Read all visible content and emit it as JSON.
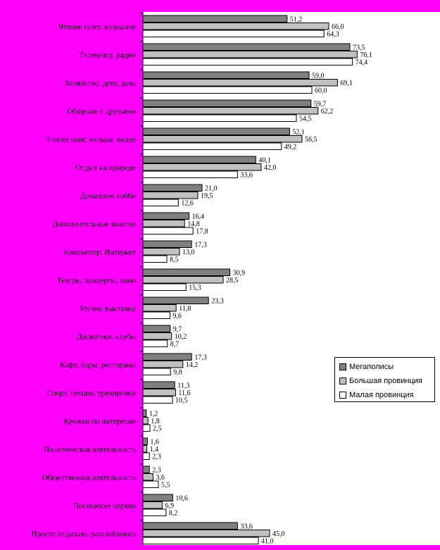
{
  "chart_data": {
    "type": "bar",
    "orientation": "horizontal",
    "title": "",
    "xlabel": "",
    "ylabel": "",
    "xlim": [
      0,
      100
    ],
    "grid": false,
    "legend_position": "right",
    "background_color": "#ff00ff",
    "plot_background_color": "#ffffff",
    "categories": [
      "Чтение газет, журналов",
      "Телевизор, радио",
      "Хозяйство, дети, дача",
      "Общение с друзьями",
      "Чтение книг, музыка, видео",
      "Отдых на природе",
      "Домашнее хобби",
      "Дополнительные занятия",
      "Компьютер, Интернет",
      "Театры, концерты, кино",
      "Музеи, выставки",
      "Дискотеки, клубы",
      "Кафе, бары, рестораны",
      "Спорт, секции, тренировки",
      "Кружки по интересам",
      "Политическая деятельность",
      "Общественная деятельность",
      "Посещение церкви",
      "Просто отдыхаю, расслабляюсь"
    ],
    "series": [
      {
        "name": "Мегаполисы",
        "color": "#808080",
        "values": [
          51.2,
          73.5,
          59.0,
          59.7,
          52.1,
          40.1,
          21.0,
          16.4,
          17.3,
          30.9,
          23.3,
          9.7,
          17.3,
          11.3,
          1.2,
          1.6,
          2.3,
          10.6,
          33.6
        ],
        "labels": [
          "51,2",
          "73,5",
          "59,0",
          "59,7",
          "52,1",
          "40,1",
          "21,0",
          "16,4",
          "17,3",
          "30,9",
          "23,3",
          "9,7",
          "17,3",
          "11,3",
          "1,2",
          "1,6",
          "2,3",
          "10,6",
          "33,6"
        ]
      },
      {
        "name": "Большая провинция",
        "color": "#c0c0c0",
        "values": [
          66.0,
          76.1,
          69.1,
          62.2,
          56.5,
          42.0,
          19.5,
          14.8,
          13.0,
          28.5,
          11.8,
          10.2,
          14.2,
          11.6,
          1.8,
          1.4,
          3.6,
          6.9,
          45.0
        ],
        "labels": [
          "66,0",
          "76,1",
          "69,1",
          "62,2",
          "56,5",
          "42,0",
          "19,5",
          "14,8",
          "13,0",
          "28,5",
          "11,8",
          "10,2",
          "14,2",
          "11,6",
          "1,8",
          "1,4",
          "3,6",
          "6,9",
          "45,0"
        ]
      },
      {
        "name": "Малая провинция",
        "color": "#ffffff",
        "values": [
          64.3,
          74.4,
          60.0,
          54.5,
          49.2,
          33.6,
          12.6,
          17.8,
          8.5,
          15.3,
          9.6,
          8.7,
          9.8,
          10.5,
          2.5,
          2.3,
          5.5,
          8.2,
          41.0
        ],
        "labels": [
          "64,3",
          "74,4",
          "60,0",
          "54,5",
          "49,2",
          "33,6",
          "12,6",
          "17,8",
          "8,5",
          "15,3",
          "9,6",
          "8,7",
          "9,8",
          "10,5",
          "2,5",
          "2,3",
          "5,5",
          "8,2",
          "41,0"
        ]
      }
    ]
  }
}
